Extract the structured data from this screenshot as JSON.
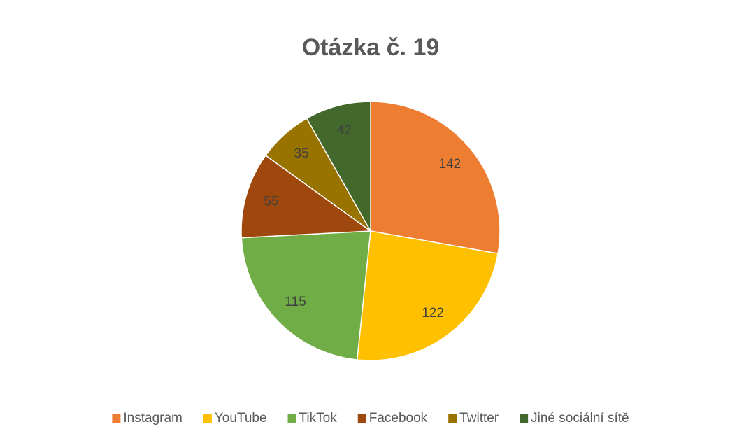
{
  "chart_data": {
    "type": "pie",
    "title": "Otázka č. 19",
    "categories": [
      "Instagram",
      "YouTube",
      "TikTok",
      "Facebook",
      "Twitter",
      "Jiné sociální sítě"
    ],
    "values": [
      142,
      122,
      115,
      55,
      35,
      42
    ],
    "colors": [
      "#ED7D31",
      "#FFC000",
      "#70AD47",
      "#9E480E",
      "#997300",
      "#43682B"
    ],
    "legend": "bottom"
  }
}
